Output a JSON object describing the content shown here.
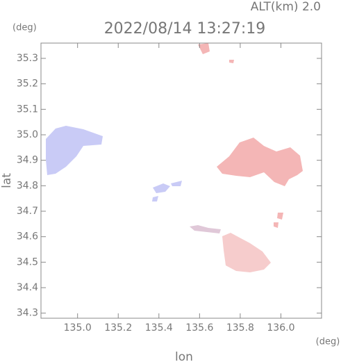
{
  "chart_data": {
    "type": "map",
    "annotation": "ALT(km) 2.0",
    "title": "2022/08/14 13:27:19",
    "ylabel": "lat",
    "xlabel": "lon",
    "yunit": "(deg)",
    "xunit": "(deg)",
    "xlim": [
      134.82,
      136.2
    ],
    "xticks": [
      {
        "value": 135.0,
        "label": "135.0"
      },
      135.2,
      135.4,
      135.6,
      135.8,
      {
        "value": 136.0,
        "label": "136.0"
      }
    ],
    "ylim": [
      34.28,
      35.36
    ],
    "yticks": [
      34.3,
      34.4,
      34.5,
      34.6,
      34.7,
      34.8,
      34.9,
      {
        "value": 35.0,
        "label": "35.0"
      },
      35.1,
      35.2,
      35.3
    ]
  }
}
